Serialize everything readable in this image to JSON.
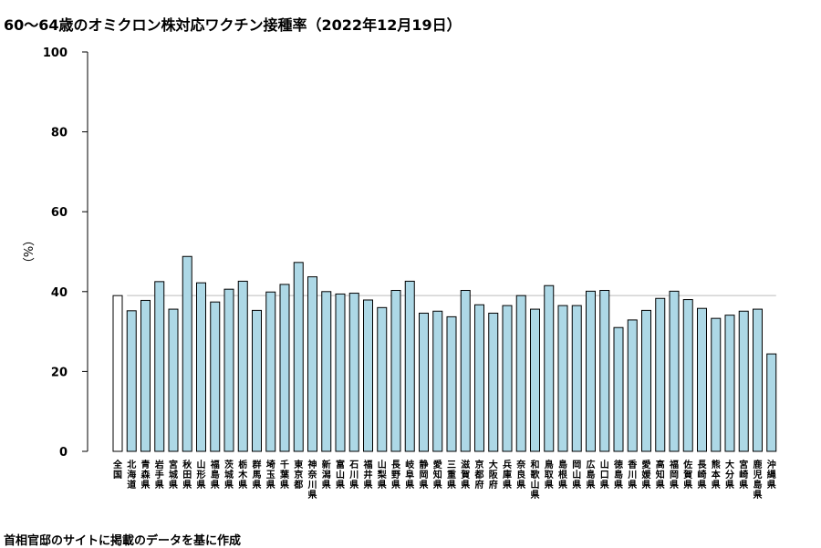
{
  "title": "60～64歳のオミクロン株対応ワクチン接種率（2022年12月19日）",
  "caption": "首相官邸のサイトに掲載のデータを基に作成",
  "colors": {
    "bar_fill": "#add8e6",
    "first_bar_fill": "#ffffff",
    "bar_stroke": "#000000",
    "reference_line": "#bbbbbb"
  },
  "chart_data": {
    "type": "bar",
    "ylabel": "（%）",
    "ylim": [
      0,
      100
    ],
    "yticks": [
      0,
      20,
      40,
      60,
      80,
      100
    ],
    "reference_value": 39.0,
    "categories": [
      "全国",
      "北海道",
      "青森県",
      "岩手県",
      "宮城県",
      "秋田県",
      "山形県",
      "福島県",
      "茨城県",
      "栃木県",
      "群馬県",
      "埼玉県",
      "千葉県",
      "東京都",
      "神奈川県",
      "新潟県",
      "富山県",
      "石川県",
      "福井県",
      "山梨県",
      "長野県",
      "岐阜県",
      "静岡県",
      "愛知県",
      "三重県",
      "滋賀県",
      "京都府",
      "大阪府",
      "兵庫県",
      "奈良県",
      "和歌山県",
      "鳥取県",
      "島根県",
      "岡山県",
      "広島県",
      "山口県",
      "徳島県",
      "香川県",
      "愛媛県",
      "高知県",
      "福岡県",
      "佐賀県",
      "長崎県",
      "熊本県",
      "大分県",
      "宮崎県",
      "鹿児島県",
      "沖縄県"
    ],
    "values": [
      39.0,
      35.2,
      37.8,
      42.5,
      35.6,
      48.8,
      42.2,
      37.4,
      40.6,
      42.6,
      35.3,
      39.9,
      41.8,
      47.3,
      43.7,
      40.0,
      39.4,
      39.6,
      37.9,
      36.0,
      40.3,
      42.6,
      34.6,
      35.1,
      33.7,
      40.3,
      36.7,
      34.6,
      36.5,
      39.0,
      35.6,
      41.5,
      36.5,
      36.5,
      40.1,
      40.3,
      31.0,
      32.9,
      35.3,
      38.3,
      40.1,
      38.0,
      35.8,
      33.3,
      34.1,
      35.1,
      35.6,
      24.4
    ]
  }
}
